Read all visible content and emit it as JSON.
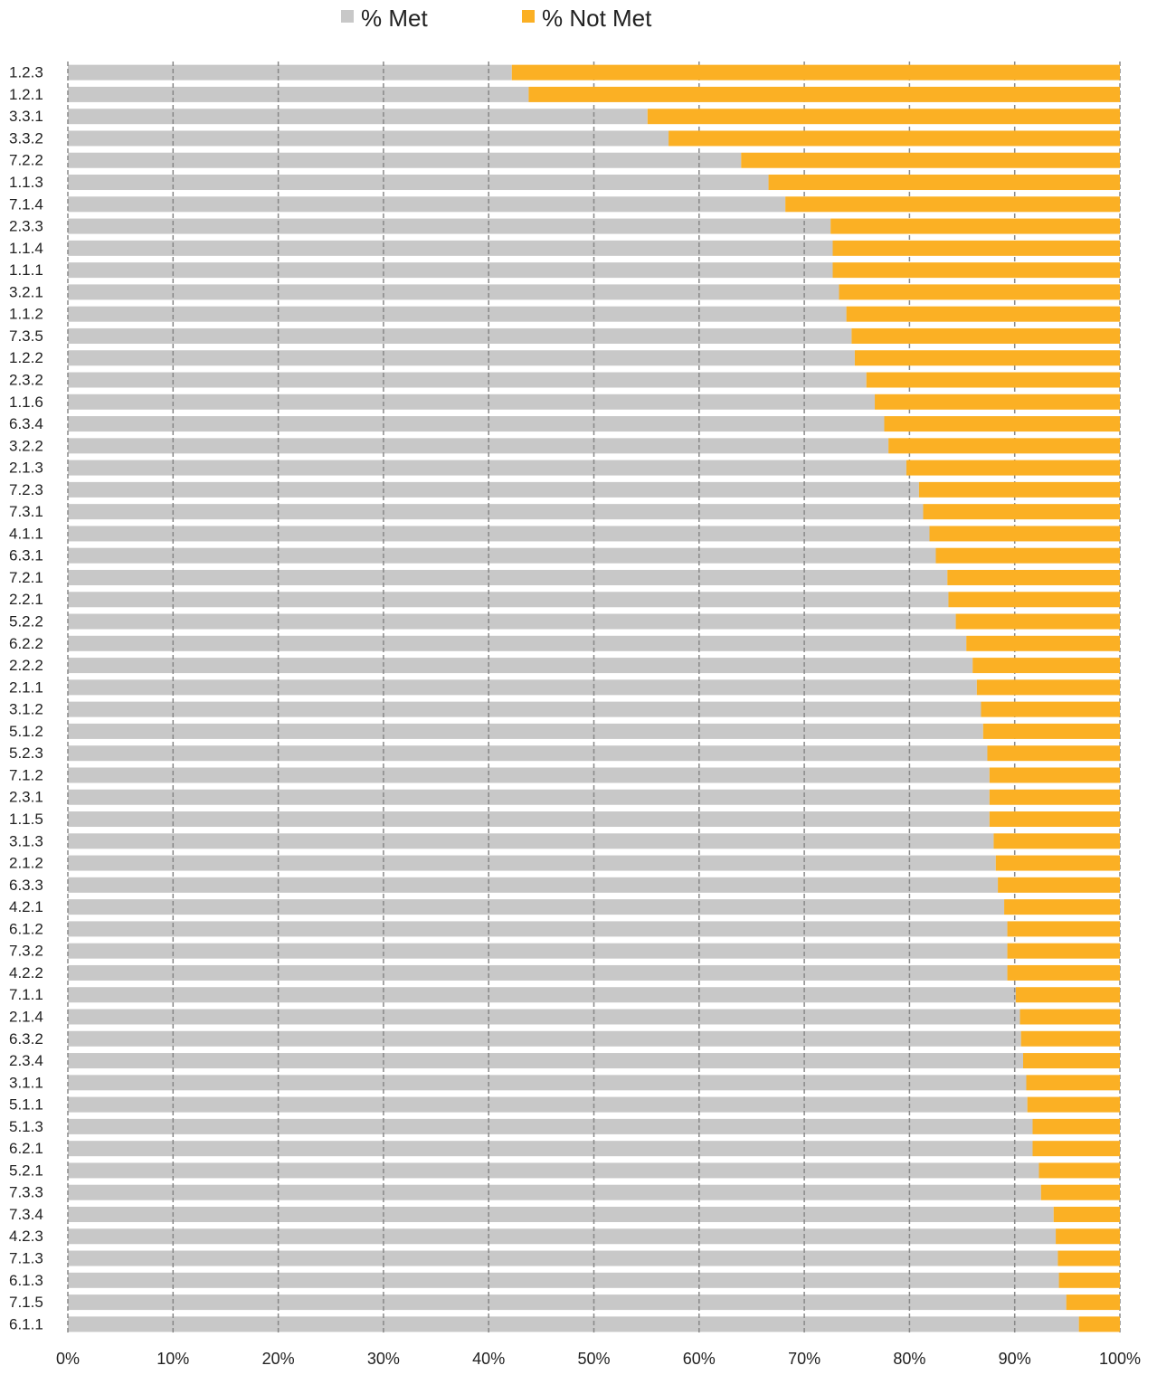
{
  "chart_data": {
    "type": "stacked-barh",
    "categories": [
      "1.2.3",
      "1.2.1",
      "3.3.1",
      "3.3.2",
      "7.2.2",
      "1.1.3",
      "7.1.4",
      "2.3.3",
      "1.1.4",
      "1.1.1",
      "3.2.1",
      "1.1.2",
      "7.3.5",
      "1.2.2",
      "2.3.2",
      "1.1.6",
      "6.3.4",
      "3.2.2",
      "2.1.3",
      "7.2.3",
      "7.3.1",
      "4.1.1",
      "6.3.1",
      "7.2.1",
      "2.2.1",
      "5.2.2",
      "6.2.2",
      "2.2.2",
      "2.1.1",
      "3.1.2",
      "5.1.2",
      "5.2.3",
      "7.1.2",
      "2.3.1",
      "1.1.5",
      "3.1.3",
      "2.1.2",
      "6.3.3",
      "4.2.1",
      "6.1.2",
      "7.3.2",
      "4.2.2",
      "7.1.1",
      "2.1.4",
      "6.3.2",
      "2.3.4",
      "3.1.1",
      "5.1.1",
      "5.1.3",
      "6.2.1",
      "5.2.1",
      "7.3.3",
      "7.3.4",
      "4.2.3",
      "7.1.3",
      "6.1.3",
      "7.1.5",
      "6.1.1"
    ],
    "series": [
      {
        "name": "% Met",
        "color": "#c8c8c8",
        "values": [
          42.2,
          43.8,
          55.1,
          57.1,
          64.0,
          66.6,
          68.2,
          72.5,
          72.7,
          72.7,
          73.3,
          74.0,
          74.5,
          74.8,
          75.9,
          76.7,
          77.6,
          78.0,
          79.7,
          80.9,
          81.3,
          81.9,
          82.5,
          83.6,
          83.7,
          84.4,
          85.4,
          86.0,
          86.4,
          86.8,
          87.0,
          87.4,
          87.6,
          87.6,
          87.6,
          88.0,
          88.2,
          88.4,
          89.0,
          89.3,
          89.3,
          89.3,
          90.1,
          90.5,
          90.6,
          90.8,
          91.1,
          91.2,
          91.7,
          91.7,
          92.3,
          92.5,
          93.7,
          93.9,
          94.1,
          94.2,
          94.9,
          96.1
        ]
      },
      {
        "name": "% Not Met",
        "color": "#fbb024",
        "values": [
          57.8,
          56.2,
          44.9,
          42.9,
          36.0,
          33.4,
          31.8,
          27.5,
          27.3,
          27.3,
          26.7,
          26.0,
          25.5,
          25.2,
          24.1,
          23.3,
          22.4,
          22.0,
          20.3,
          19.1,
          18.7,
          18.1,
          17.5,
          16.4,
          16.3,
          15.6,
          14.6,
          14.0,
          13.6,
          13.2,
          13.0,
          12.6,
          12.4,
          12.4,
          12.4,
          12.0,
          11.8,
          11.6,
          11.0,
          10.7,
          10.7,
          10.7,
          9.9,
          9.5,
          9.4,
          9.2,
          8.9,
          8.8,
          8.3,
          8.3,
          7.7,
          7.5,
          6.3,
          6.1,
          5.9,
          5.8,
          5.1,
          3.9
        ]
      }
    ],
    "xlim": [
      0,
      100
    ],
    "xticks": [
      {
        "value": 0,
        "label": "0%"
      },
      {
        "value": 10,
        "label": "10%"
      },
      {
        "value": 20,
        "label": "20%"
      },
      {
        "value": 30,
        "label": "30%"
      },
      {
        "value": 40,
        "label": "40%"
      },
      {
        "value": 50,
        "label": "50%"
      },
      {
        "value": 60,
        "label": "60%"
      },
      {
        "value": 70,
        "label": "70%"
      },
      {
        "value": 80,
        "label": "80%"
      },
      {
        "value": 90,
        "label": "90%"
      },
      {
        "value": 100,
        "label": "100%"
      }
    ],
    "grid": true,
    "legend": "top"
  }
}
